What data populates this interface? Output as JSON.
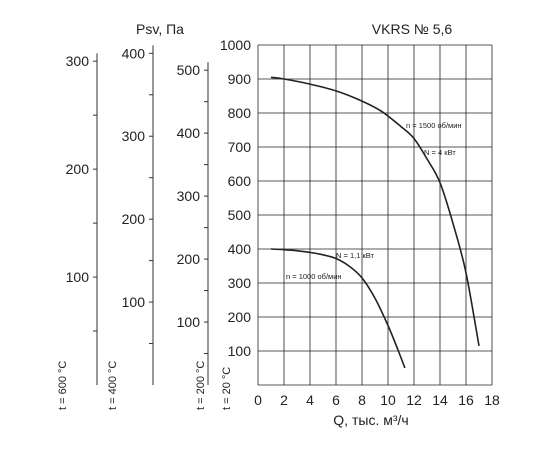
{
  "chart_data": {
    "type": "line",
    "title": "VKRS № 5,6",
    "ylabel": "Psv, Па",
    "xlabel": "Q, тыс. м³/ч",
    "xlim": [
      0,
      18
    ],
    "ylim": [
      0,
      1000
    ],
    "x_ticks": [
      "0",
      "2",
      "4",
      "6",
      "8",
      "10",
      "12",
      "14",
      "16",
      "18"
    ],
    "y_ticks": [
      "100",
      "200",
      "300",
      "400",
      "500",
      "600",
      "700",
      "800",
      "900",
      "1000"
    ],
    "grid": true,
    "series": [
      {
        "name": "n = 1500 об/мин",
        "power_label": "N = 4 кВт",
        "x": [
          1.0,
          2.0,
          4.0,
          6.0,
          8.0,
          9.5,
          11.0,
          12.0,
          13.0,
          14.0,
          15.0,
          16.0,
          17.0
        ],
        "y": [
          905,
          900,
          885,
          865,
          835,
          805,
          760,
          725,
          665,
          595,
          475,
          330,
          115
        ]
      },
      {
        "name": "n = 1000 об/мин",
        "power_label": "N = 1,1 кВт",
        "x": [
          1.0,
          2.0,
          3.0,
          4.0,
          5.0,
          6.0,
          7.0,
          8.0,
          9.0,
          10.0,
          10.8,
          11.3
        ],
        "y": [
          400,
          398,
          395,
          390,
          383,
          372,
          350,
          315,
          255,
          175,
          100,
          50
        ]
      }
    ],
    "temperature_scales": [
      {
        "label": "t = 20 °C",
        "ticks": [
          "100",
          "200",
          "300",
          "400",
          "500",
          "600",
          "700",
          "800",
          "900",
          "1000"
        ]
      },
      {
        "label": "t = 200 °C",
        "ticks": [
          "100",
          "200",
          "300",
          "400",
          "500"
        ]
      },
      {
        "label": "t = 400 °C",
        "ticks": [
          "100",
          "200",
          "300",
          "400"
        ]
      },
      {
        "label": "t = 600 °C",
        "ticks": [
          "100",
          "200",
          "300"
        ]
      }
    ]
  }
}
